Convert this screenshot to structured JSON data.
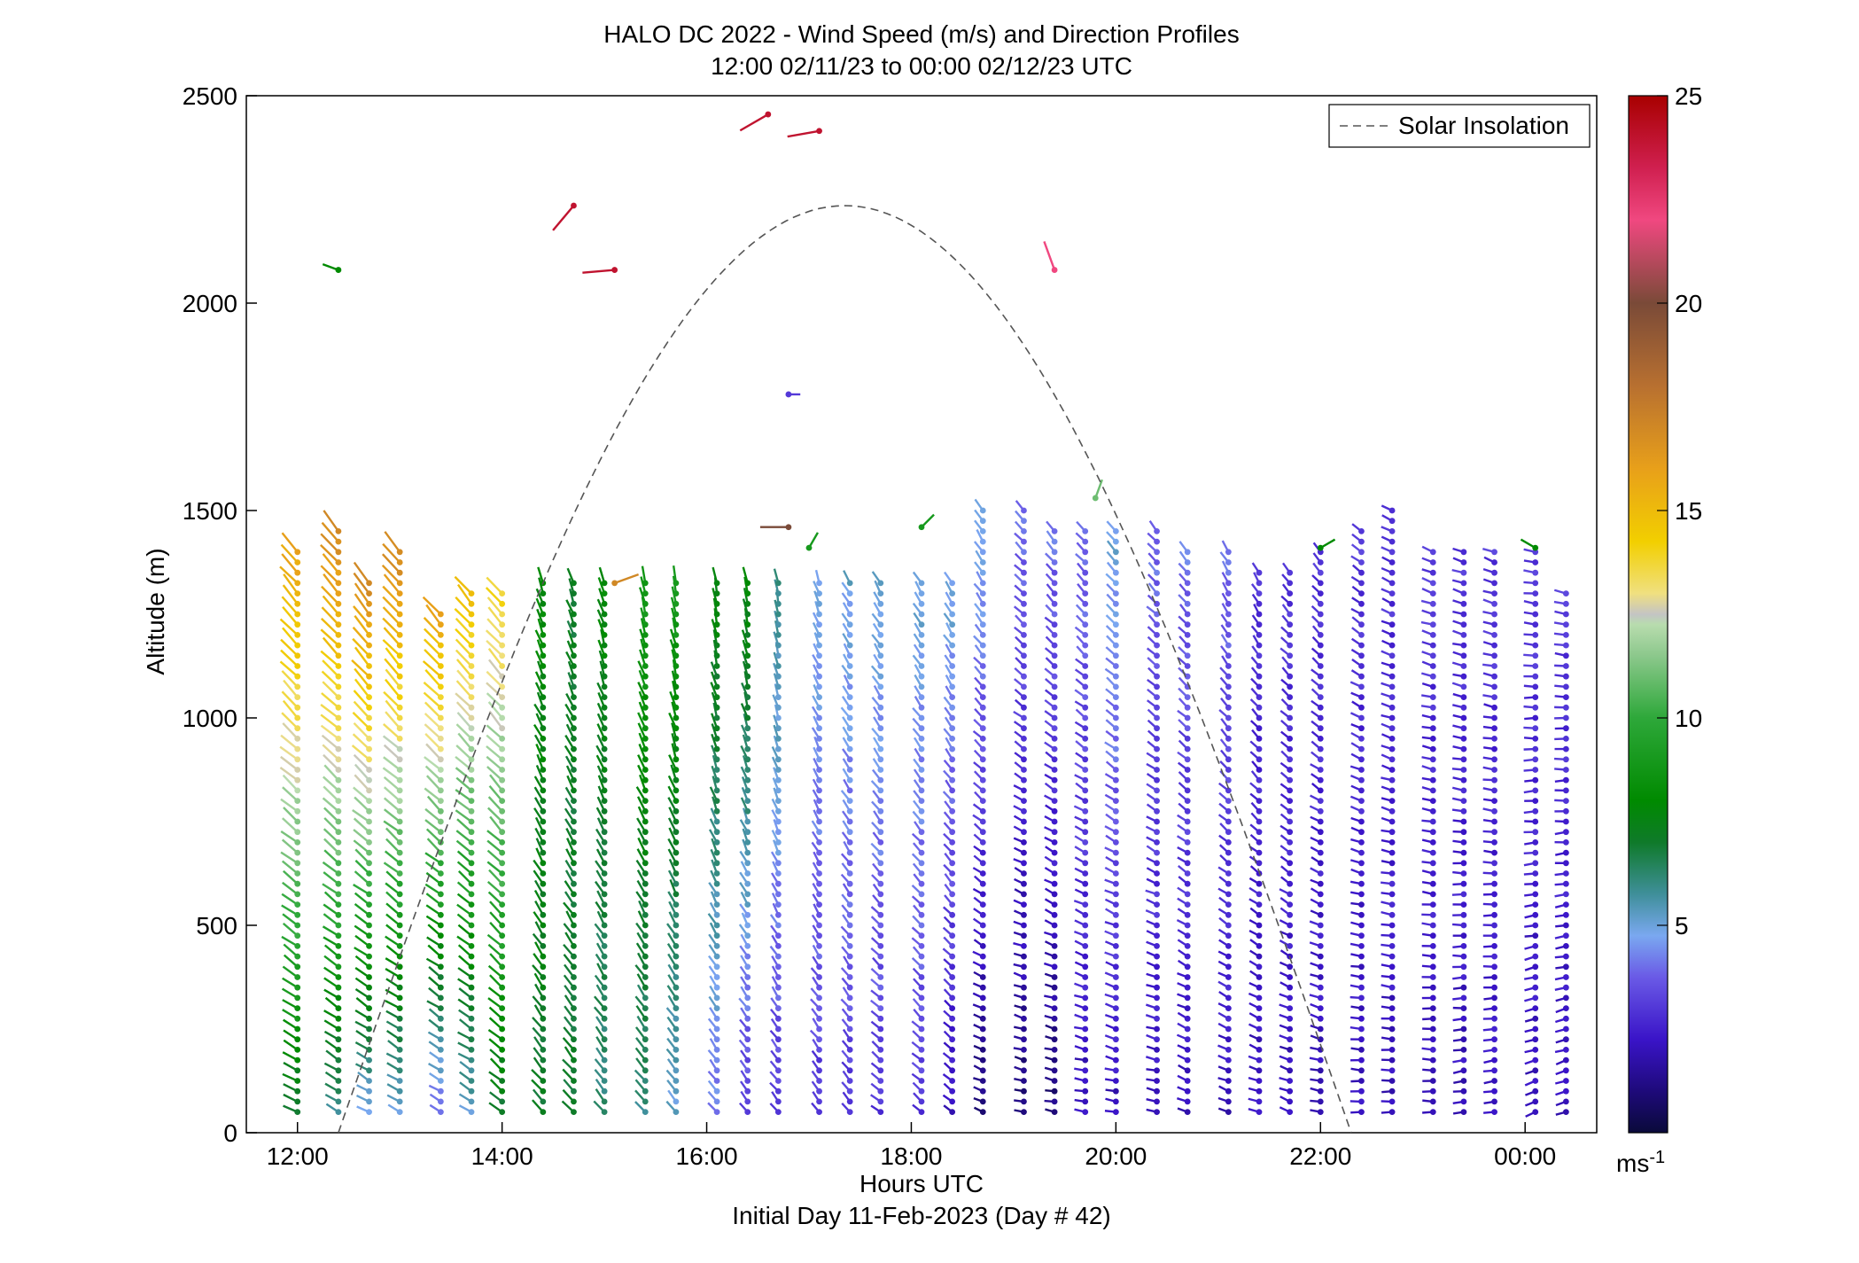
{
  "title_line1": "HALO DC 2022 - Wind Speed (m/s) and Direction Profiles",
  "title_line2": "12:00 02/11/23 to 00:00 02/12/23  UTC",
  "xlabel": "Hours UTC",
  "ylabel": "Altitude (m)",
  "subtitle": "Initial Day 11-Feb-2023 (Day # 42)",
  "legend_label": "Solar Insolation",
  "colorbar_unit": "ms",
  "colorbar_unit_exp": "-1",
  "chart_data": {
    "type": "scatter",
    "subtype": "wind barbs (direction sticks colored by speed)",
    "xlim_hours": [
      11.5,
      24.7
    ],
    "ylim": [
      0,
      2500
    ],
    "x_ticks": [
      {
        "hours": 12,
        "label": "12:00"
      },
      {
        "hours": 14,
        "label": "14:00"
      },
      {
        "hours": 16,
        "label": "16:00"
      },
      {
        "hours": 18,
        "label": "18:00"
      },
      {
        "hours": 20,
        "label": "20:00"
      },
      {
        "hours": 22,
        "label": "22:00"
      },
      {
        "hours": 24,
        "label": "00:00"
      }
    ],
    "y_ticks": [
      0,
      500,
      1000,
      1500,
      2000,
      2500
    ],
    "colorbar": {
      "min": 0,
      "max": 25,
      "ticks": [
        5,
        10,
        15,
        20,
        25
      ],
      "unit": "ms-1"
    },
    "solar_insolation": {
      "style": "dashed",
      "color": "#555555",
      "start_hours": 12.4,
      "peak_hours": 17.3,
      "peak_alt": 2235,
      "end_hours": 22.3
    },
    "legend_position": "top-right",
    "profiles": [
      {
        "t": 12.0,
        "top": 1400,
        "speed_low": 7,
        "speed_high": 16,
        "dir_low": 300,
        "dir_high": 320
      },
      {
        "t": 12.4,
        "top": 1460,
        "speed_low": 6,
        "speed_high": 17,
        "dir_low": 300,
        "dir_high": 320
      },
      {
        "t": 12.7,
        "top": 1330,
        "speed_low": 5,
        "speed_high": 17,
        "dir_low": 300,
        "dir_high": 320
      },
      {
        "t": 13.0,
        "top": 1400,
        "speed_low": 5,
        "speed_high": 17,
        "dir_low": 300,
        "dir_high": 320
      },
      {
        "t": 13.4,
        "top": 1260,
        "speed_low": 4,
        "speed_high": 16,
        "dir_low": 300,
        "dir_high": 320
      },
      {
        "t": 13.7,
        "top": 1300,
        "speed_low": 5,
        "speed_high": 15,
        "dir_low": 300,
        "dir_high": 320
      },
      {
        "t": 14.0,
        "top": 1300,
        "speed_low": 7,
        "speed_high": 14,
        "dir_low": 310,
        "dir_high": 320
      },
      {
        "t": 14.4,
        "top": 1330,
        "speed_low": 7,
        "speed_high": 8,
        "dir_low": 320,
        "dir_high": 340
      },
      {
        "t": 14.7,
        "top": 1330,
        "speed_low": 7,
        "speed_high": 7,
        "dir_low": 320,
        "dir_high": 340
      },
      {
        "t": 15.0,
        "top": 1330,
        "speed_low": 6,
        "speed_high": 8,
        "dir_low": 320,
        "dir_high": 345
      },
      {
        "t": 15.4,
        "top": 1330,
        "speed_low": 6,
        "speed_high": 9,
        "dir_low": 320,
        "dir_high": 345
      },
      {
        "t": 15.7,
        "top": 1330,
        "speed_low": 5,
        "speed_high": 9,
        "dir_low": 320,
        "dir_high": 350
      },
      {
        "t": 16.1,
        "top": 1330,
        "speed_low": 4,
        "speed_high": 8,
        "dir_low": 320,
        "dir_high": 350
      },
      {
        "t": 16.4,
        "top": 1330,
        "speed_low": 3,
        "speed_high": 8,
        "dir_low": 320,
        "dir_high": 350
      },
      {
        "t": 16.7,
        "top": 1330,
        "speed_low": 3,
        "speed_high": 6,
        "dir_low": 320,
        "dir_high": 350
      },
      {
        "t": 17.1,
        "top": 1330,
        "speed_low": 3,
        "speed_high": 5,
        "dir_low": 320,
        "dir_high": 340
      },
      {
        "t": 17.4,
        "top": 1330,
        "speed_low": 3,
        "speed_high": 5,
        "dir_low": 320,
        "dir_high": 330
      },
      {
        "t": 17.7,
        "top": 1330,
        "speed_low": 3,
        "speed_high": 5,
        "dir_low": 310,
        "dir_high": 330
      },
      {
        "t": 18.1,
        "top": 1330,
        "speed_low": 3,
        "speed_high": 5,
        "dir_low": 310,
        "dir_high": 330
      },
      {
        "t": 18.4,
        "top": 1330,
        "speed_low": 2,
        "speed_high": 5,
        "dir_low": 310,
        "dir_high": 330
      },
      {
        "t": 18.7,
        "top": 1500,
        "speed_low": 1,
        "speed_high": 5,
        "dir_low": 290,
        "dir_high": 330
      },
      {
        "t": 19.1,
        "top": 1500,
        "speed_low": 1,
        "speed_high": 4,
        "dir_low": 280,
        "dir_high": 320
      },
      {
        "t": 19.4,
        "top": 1450,
        "speed_low": 1,
        "speed_high": 4,
        "dir_low": 280,
        "dir_high": 320
      },
      {
        "t": 19.7,
        "top": 1450,
        "speed_low": 2,
        "speed_high": 4,
        "dir_low": 280,
        "dir_high": 320
      },
      {
        "t": 20.0,
        "top": 1450,
        "speed_low": 2,
        "speed_high": 5,
        "dir_low": 280,
        "dir_high": 320
      },
      {
        "t": 20.4,
        "top": 1450,
        "speed_low": 2,
        "speed_high": 4,
        "dir_low": 280,
        "dir_high": 320
      },
      {
        "t": 20.7,
        "top": 1400,
        "speed_low": 2,
        "speed_high": 4,
        "dir_low": 290,
        "dir_high": 320
      },
      {
        "t": 21.1,
        "top": 1400,
        "speed_low": 2,
        "speed_high": 4,
        "dir_low": 290,
        "dir_high": 330
      },
      {
        "t": 21.4,
        "top": 1350,
        "speed_low": 2,
        "speed_high": 3,
        "dir_low": 290,
        "dir_high": 330
      },
      {
        "t": 21.7,
        "top": 1350,
        "speed_low": 2,
        "speed_high": 3,
        "dir_low": 290,
        "dir_high": 320
      },
      {
        "t": 22.0,
        "top": 1400,
        "speed_low": 2,
        "speed_high": 3,
        "dir_low": 280,
        "dir_high": 320
      },
      {
        "t": 22.4,
        "top": 1450,
        "speed_low": 2,
        "speed_high": 3,
        "dir_low": 270,
        "dir_high": 310
      },
      {
        "t": 22.7,
        "top": 1500,
        "speed_low": 2,
        "speed_high": 3,
        "dir_low": 270,
        "dir_high": 300
      },
      {
        "t": 23.1,
        "top": 1400,
        "speed_low": 2,
        "speed_high": 3,
        "dir_low": 270,
        "dir_high": 290
      },
      {
        "t": 23.4,
        "top": 1400,
        "speed_low": 2,
        "speed_high": 3,
        "dir_low": 260,
        "dir_high": 290
      },
      {
        "t": 23.7,
        "top": 1400,
        "speed_low": 2,
        "speed_high": 3,
        "dir_low": 260,
        "dir_high": 290
      },
      {
        "t": 24.1,
        "top": 1400,
        "speed_low": 2,
        "speed_high": 3,
        "dir_low": 250,
        "dir_high": 280
      },
      {
        "t": 24.4,
        "top": 1300,
        "speed_low": 2,
        "speed_high": 3,
        "dir_low": 250,
        "dir_high": 280
      }
    ],
    "isolated_points": [
      {
        "t": 12.4,
        "alt": 2080,
        "speed": 8,
        "dir": 290
      },
      {
        "t": 14.7,
        "alt": 2235,
        "speed": 24,
        "dir": 220
      },
      {
        "t": 15.1,
        "alt": 2080,
        "speed": 24,
        "dir": 265
      },
      {
        "t": 16.6,
        "alt": 2455,
        "speed": 24,
        "dir": 240
      },
      {
        "t": 17.1,
        "alt": 2415,
        "speed": 24,
        "dir": 260
      },
      {
        "t": 19.4,
        "alt": 2080,
        "speed": 22,
        "dir": 340
      },
      {
        "t": 16.8,
        "alt": 1780,
        "speed": 3,
        "dir": 90
      },
      {
        "t": 15.1,
        "alt": 1325,
        "speed": 17,
        "dir": 70
      },
      {
        "t": 16.8,
        "alt": 1460,
        "speed": 20,
        "dir": 270
      },
      {
        "t": 18.1,
        "alt": 1460,
        "speed": 9,
        "dir": 45
      },
      {
        "t": 17.0,
        "alt": 1410,
        "speed": 9,
        "dir": 30
      },
      {
        "t": 19.8,
        "alt": 1530,
        "speed": 11,
        "dir": 20
      },
      {
        "t": 22.0,
        "alt": 1410,
        "speed": 8,
        "dir": 60
      },
      {
        "t": 24.1,
        "alt": 1410,
        "speed": 8,
        "dir": 300
      }
    ]
  }
}
